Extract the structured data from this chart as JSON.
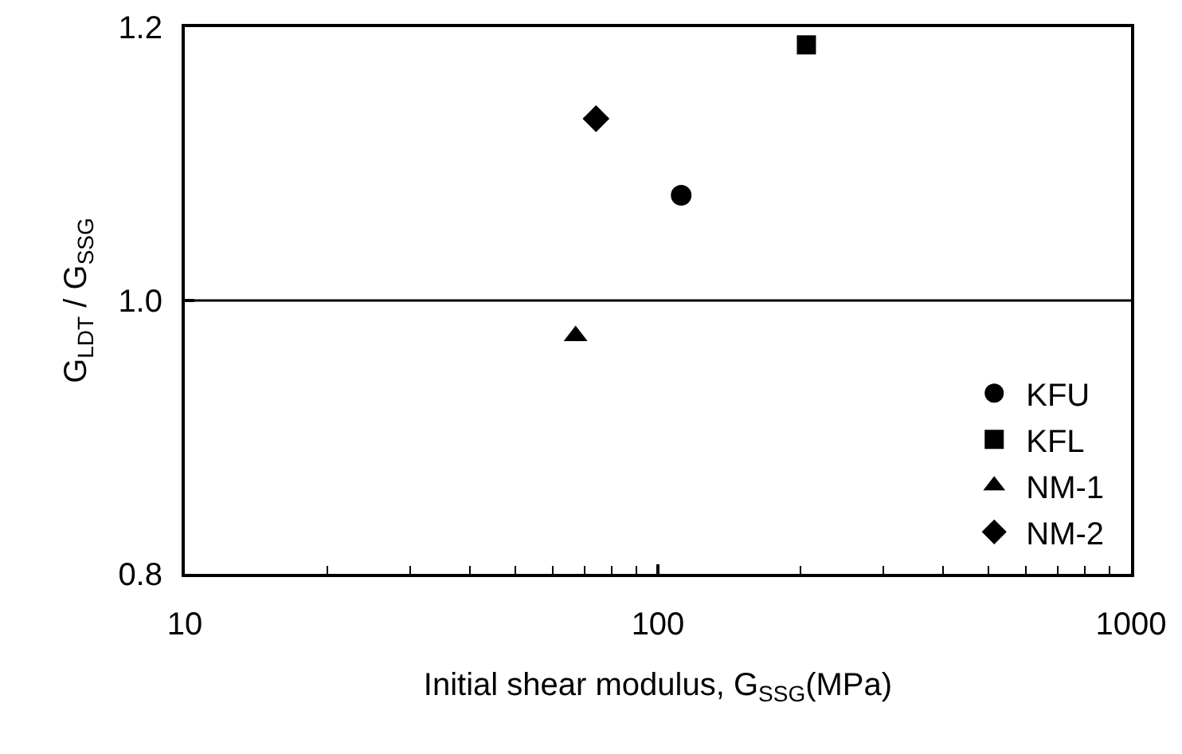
{
  "chart_data": {
    "type": "scatter",
    "xlabel": "Initial shear modulus, G$_{SSG}$(MPa)",
    "ylabel": "G$_{LDT}$ / G$_{SSG}$",
    "log": "x",
    "xlim": [
      10,
      1000
    ],
    "xticks": [
      10,
      100,
      1000
    ],
    "ylim": [
      0.8,
      1.2
    ],
    "yticks": [
      0.8,
      {
        "value": 1.0,
        "label": "1.0"
      },
      1.2
    ],
    "grid": false,
    "legend": "bottom right",
    "ref_lines": [
      {
        "axis": "y",
        "value": 1.0,
        "color": "#000000",
        "line_style": "solid"
      }
    ],
    "series": [
      {
        "name": "KFU",
        "color": "#000000",
        "marker": "circle",
        "x": [
          112
        ],
        "values": [
          1.077
        ]
      },
      {
        "name": "KFL",
        "color": "#000000",
        "marker": "square",
        "x": [
          206
        ],
        "values": [
          1.187
        ]
      },
      {
        "name": "NM-1",
        "color": "#000000",
        "marker": "triangle",
        "x": [
          67
        ],
        "values": [
          0.974
        ]
      },
      {
        "name": "NM-2",
        "color": "#000000",
        "marker": "diamond",
        "x": [
          74
        ],
        "values": [
          1.133
        ]
      }
    ]
  }
}
